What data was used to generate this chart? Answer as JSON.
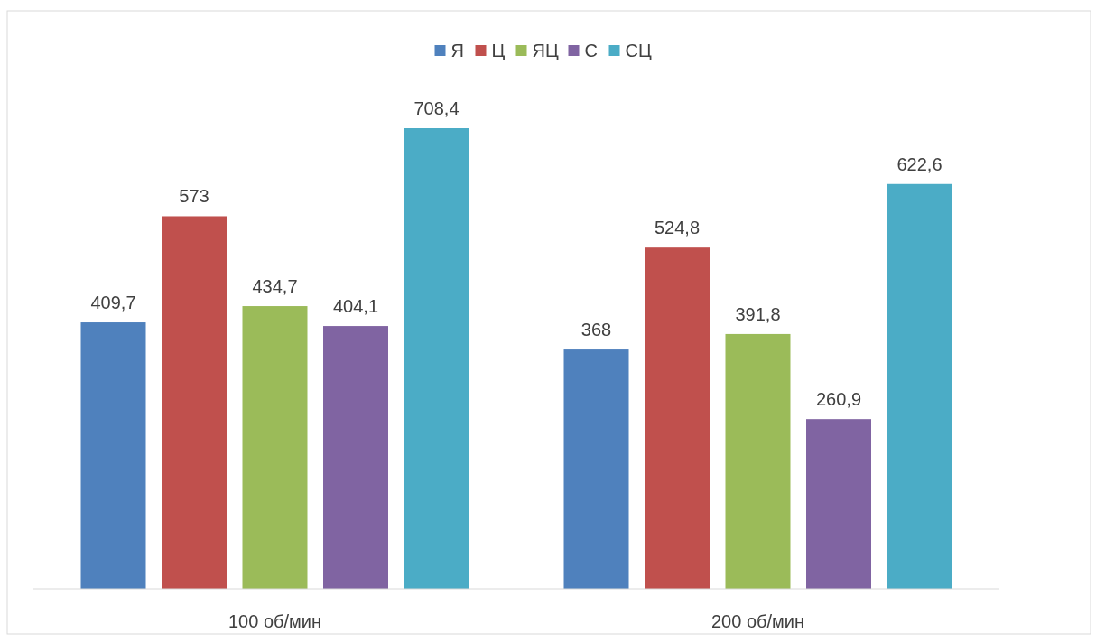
{
  "chart_data": {
    "type": "bar",
    "categories": [
      "100 об/мин",
      "200 об/мин"
    ],
    "series": [
      {
        "name": "Я",
        "color": "#4f81bd",
        "values": [
          409.7,
          368
        ],
        "value_labels": [
          "409,7",
          "368"
        ]
      },
      {
        "name": "Ц",
        "color": "#c0504d",
        "values": [
          573,
          524.8
        ],
        "value_labels": [
          "573",
          "524,8"
        ]
      },
      {
        "name": "ЯЦ",
        "color": "#9bbb59",
        "values": [
          434.7,
          391.8
        ],
        "value_labels": [
          "434,7",
          "391,8"
        ]
      },
      {
        "name": "С",
        "color": "#8064a2",
        "values": [
          404.1,
          260.9
        ],
        "value_labels": [
          "404,1",
          "260,9"
        ]
      },
      {
        "name": "СЦ",
        "color": "#4bacc6",
        "values": [
          708.4,
          622.6
        ],
        "value_labels": [
          "708,4",
          "622,6"
        ]
      }
    ],
    "legend": "top"
  }
}
